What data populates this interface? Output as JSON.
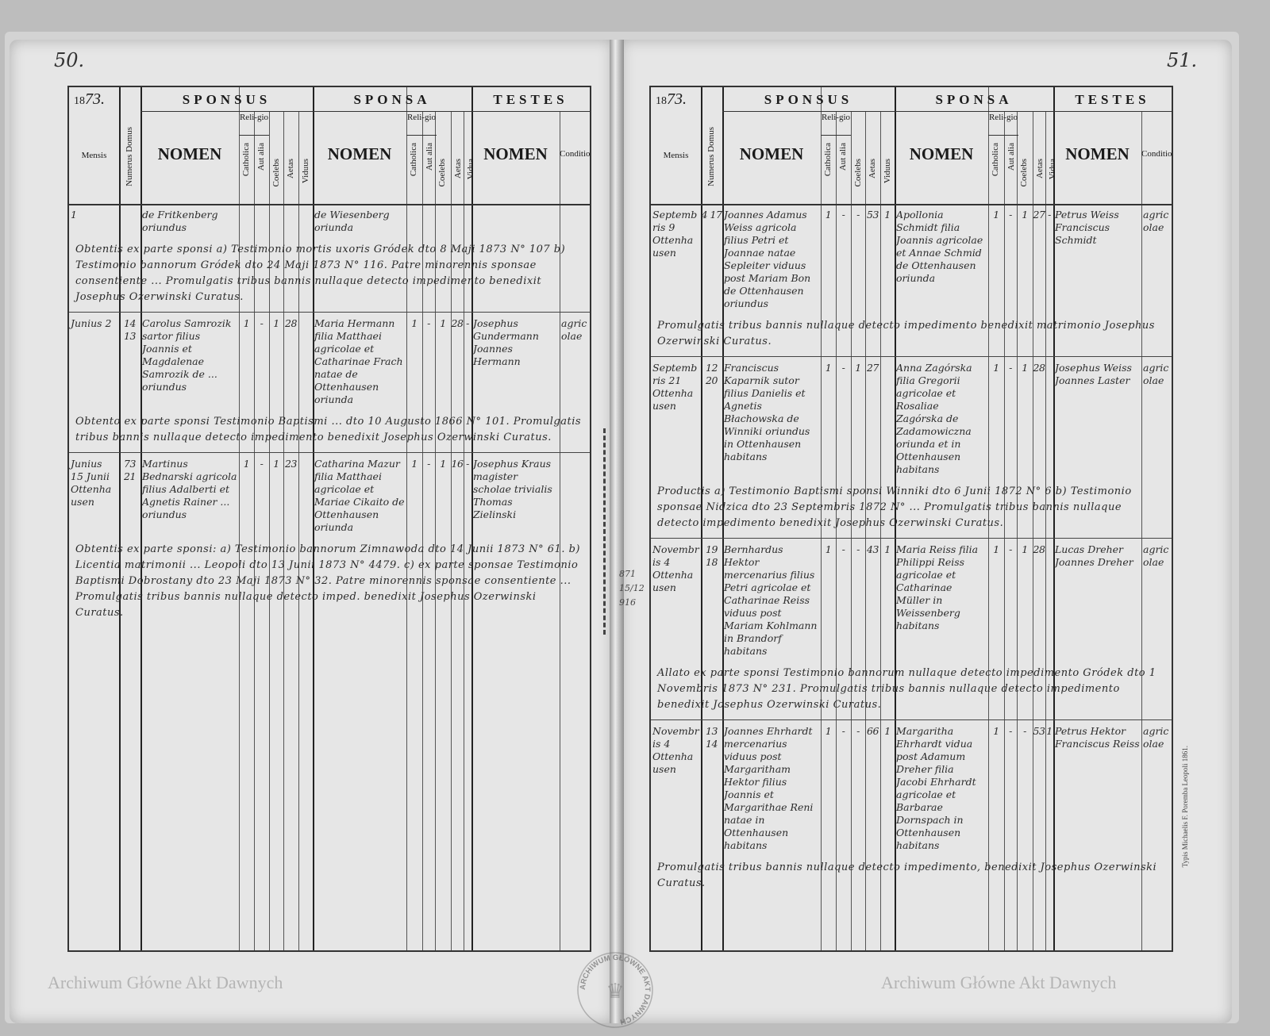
{
  "header": {
    "year_prefix": "18",
    "year_handwritten": "73.",
    "sponsus": "SPONSUS",
    "sponsa": "SPONSA",
    "testes": "TESTES",
    "mensis": "Mensis",
    "numerus_domus": "Numerus Domus",
    "nomen": "NOMEN",
    "religio": "Reli-gio",
    "catholica": "Catholica",
    "aut_alia": "Aut alia",
    "coelebs": "Coelebs",
    "aetas": "Aetas",
    "viduus": "Viduus",
    "vidua": "Vidua",
    "conditio": "Conditio"
  },
  "pages": [
    {
      "page_number": "50.",
      "entries": [
        {
          "mensis": "1",
          "domus": "",
          "sponsus": "de Fritkenberg oriundus",
          "sponsus_cath": "",
          "sponsus_alia": "",
          "sponsus_coel": "",
          "sponsus_aetas": "",
          "sponsus_vid": "",
          "sponsa": "de Wiesenberg oriunda",
          "sponsa_cath": "",
          "sponsa_alia": "",
          "sponsa_coel": "",
          "sponsa_aetas": "",
          "sponsa_vid": "",
          "testes": "",
          "conditio": "",
          "remark": "Obtentis ex parte sponsi a) Testimonio mortis uxoris Gródek dto 8 Maji 1873 N° 107 b) Testimonio bannorum Gródek dto 24 Maji 1873 N° 116. Patre minorennis sponsae consentiente ... Promulgatis tribus bannis nullaque detecto impedimento benedixit Josephus Ozerwinski Curatus."
        },
        {
          "mensis": "Junius 2",
          "domus": "14 13",
          "sponsus": "Carolus Samrozik sartor filius Joannis et Magdalenae Samrozik de ... oriundus",
          "sponsus_cath": "1",
          "sponsus_alia": "-",
          "sponsus_coel": "1",
          "sponsus_aetas": "28",
          "sponsus_vid": "",
          "sponsa": "Maria Hermann filia Matthaei agricolae et Catharinae Frach natae de Ottenhausen oriunda",
          "sponsa_cath": "1",
          "sponsa_alia": "-",
          "sponsa_coel": "1",
          "sponsa_aetas": "28",
          "sponsa_vid": "-",
          "testes": "Josephus Gundermann Joannes Hermann",
          "conditio": "agricolae",
          "remark": "Obtento ex parte sponsi Testimonio Baptismi ... dto 10 Augusto 1866 N° 101. Promulgatis tribus bannis nullaque detecto impedimento benedixit Josephus Ozerwinski Curatus."
        },
        {
          "mensis": "Junius 15 Junii Ottenhausen",
          "domus": "73 21",
          "sponsus": "Martinus Bednarski agricola filius Adalberti et Agnetis Rainer ... oriundus",
          "sponsus_cath": "1",
          "sponsus_alia": "-",
          "sponsus_coel": "1",
          "sponsus_aetas": "23",
          "sponsus_vid": "",
          "sponsa": "Catharina Mazur filia Matthaei agricolae et Mariae Cikaito de Ottenhausen oriunda",
          "sponsa_cath": "1",
          "sponsa_alia": "-",
          "sponsa_coel": "1",
          "sponsa_aetas": "16",
          "sponsa_vid": "-",
          "testes": "Josephus Kraus magister scholae trivialis Thomas Zielinski",
          "conditio": "",
          "remark": "Obtentis ex parte sponsi: a) Testimonio bannorum Zimnawoda dto 14 Junii 1873 N° 61. b) Licentia matrimonii ... Leopoli dto 13 Junii 1873 N° 4479. c) ex parte sponsae Testimonio Baptismi Dobrostany dto 23 Maji 1873 N° 32. Patre minorennis sponsae consentiente ... Promulgatis tribus bannis nullaque detecto imped. benedixit Josephus Ozerwinski Curatus."
        }
      ]
    },
    {
      "page_number": "51.",
      "entries": [
        {
          "mensis": "Septembris 9 Ottenhausen",
          "domus": "4 17",
          "sponsus": "Joannes Adamus Weiss agricola filius Petri et Joannae natae Sepleiter viduus post Mariam Bon de Ottenhausen oriundus",
          "sponsus_cath": "1",
          "sponsus_alia": "-",
          "sponsus_coel": "-",
          "sponsus_aetas": "53",
          "sponsus_vid": "1",
          "sponsa": "Apollonia Schmidt filia Joannis agricolae et Annae Schmid de Ottenhausen oriunda",
          "sponsa_cath": "1",
          "sponsa_alia": "-",
          "sponsa_coel": "1",
          "sponsa_aetas": "27",
          "sponsa_vid": "-",
          "testes": "Petrus Weiss Franciscus Schmidt",
          "conditio": "agricolae",
          "remark": "Promulgatis tribus bannis nullaque detecto impedimento benedixit matrimonio Josephus Ozerwinski Curatus."
        },
        {
          "mensis": "Septembris 21 Ottenhausen",
          "domus": "12 20",
          "sponsus": "Franciscus Kaparnik sutor filius Danielis et Agnetis Błachowska de Winniki oriundus in Ottenhausen habitans",
          "sponsus_cath": "1",
          "sponsus_alia": "-",
          "sponsus_coel": "1",
          "sponsus_aetas": "27",
          "sponsus_vid": "",
          "sponsa": "Anna Zagórska filia Gregorii agricolae et Rosaliae Zagórska de Zadamowiczna oriunda et in Ottenhausen habitans",
          "sponsa_cath": "1",
          "sponsa_alia": "-",
          "sponsa_coel": "1",
          "sponsa_aetas": "28",
          "sponsa_vid": "",
          "testes": "Josephus Weiss Joannes Laster",
          "conditio": "agricolae",
          "remark": "Productis a) Testimonio Baptismi sponsi Winniki dto 6 Junii 1872 N° 6 b) Testimonio sponsae Nidzica dto 23 Septembris 1872 N° ... Promulgatis tribus bannis nullaque detecto impedimento benedixit Josephus Ozerwinski Curatus."
        },
        {
          "mensis": "Novembris 4 Ottenhausen",
          "domus": "19 18",
          "sponsus": "Bernhardus Hektor mercenarius filius Petri agricolae et Catharinae Reiss viduus post Mariam Kohlmann in Brandorf habitans",
          "sponsus_cath": "1",
          "sponsus_alia": "-",
          "sponsus_coel": "-",
          "sponsus_aetas": "43",
          "sponsus_vid": "1",
          "sponsa": "Maria Reiss filia Philippi Reiss agricolae et Catharinae Müller in Weissenberg habitans",
          "sponsa_cath": "1",
          "sponsa_alia": "-",
          "sponsa_coel": "1",
          "sponsa_aetas": "28",
          "sponsa_vid": "",
          "testes": "Lucas Dreher Joannes Dreher",
          "conditio": "agricolae",
          "remark": "Allato ex parte sponsi Testimonio bannorum nullaque detecto impedimento Gródek dto 1 Novembris 1873 N° 231. Promulgatis tribus bannis nullaque detecto impedimento benedixit Josephus Ozerwinski Curatus."
        },
        {
          "mensis": "Novembris 4 Ottenhausen",
          "domus": "13 14",
          "sponsus": "Joannes Ehrhardt mercenarius viduus post Margaritham Hektor filius Joannis et Margarithae Reni natae in Ottenhausen habitans",
          "sponsus_cath": "1",
          "sponsus_alia": "-",
          "sponsus_coel": "-",
          "sponsus_aetas": "66",
          "sponsus_vid": "1",
          "sponsa": "Margaritha Ehrhardt vidua post Adamum Dreher filia Jacobi Ehrhardt agricolae et Barbarae Dornspach in Ottenhausen habitans",
          "sponsa_cath": "1",
          "sponsa_alia": "-",
          "sponsa_coel": "-",
          "sponsa_aetas": "53",
          "sponsa_vid": "1",
          "testes": "Petrus Hektor Franciscus Reiss",
          "conditio": "agricolae",
          "remark": "Promulgatis tribus bannis nullaque detecto impedimento, benedixit Josephus Ozerwinski Curatus."
        }
      ]
    }
  ],
  "watermark": "Archiwum Główne Akt Dawnych",
  "stamp_text": "ARCHIWUM GŁÓWNE AKT DAWNYCH",
  "archive_numbers": [
    "871",
    "15/12",
    "916"
  ],
  "printer_note": "Typis Michaelis F. Poremba Leopoli 1861."
}
